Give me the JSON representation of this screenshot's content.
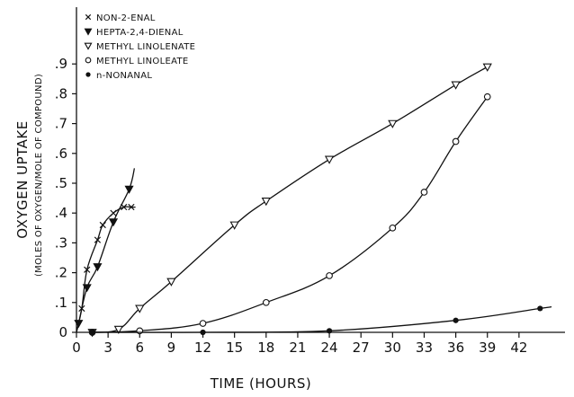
{
  "chart_data": {
    "type": "line",
    "title": "",
    "xlabel": "TIME (HOURS)",
    "ylabel": "OXYGEN UPTAKE",
    "ylabel_sub": "(MOLES OF OXYGEN/MOLE OF COMPOUND)",
    "xlim": [
      0,
      45
    ],
    "ylim": [
      0,
      1.0
    ],
    "x_ticks": [
      0,
      3,
      6,
      9,
      12,
      15,
      18,
      21,
      24,
      27,
      30,
      33,
      36,
      39,
      42
    ],
    "y_ticks": [
      {
        "value": 0,
        "label": "0"
      },
      {
        "value": 0.1,
        "label": ".1"
      },
      {
        "value": 0.2,
        "label": ".2"
      },
      {
        "value": 0.3,
        "label": ".3"
      },
      {
        "value": 0.4,
        "label": ".4"
      },
      {
        "value": 0.5,
        "label": ".5"
      },
      {
        "value": 0.6,
        "label": ".6"
      },
      {
        "value": 0.7,
        "label": ".7"
      },
      {
        "value": 0.8,
        "label": ".8"
      },
      {
        "value": 0.9,
        "label": ".9"
      }
    ],
    "grid": false,
    "legend_position": "top-left",
    "series": [
      {
        "name": "NON-2-ENAL",
        "marker": "x",
        "points": [
          [
            0.5,
            0.08
          ],
          [
            1.0,
            0.21
          ],
          [
            2.0,
            0.31
          ],
          [
            2.5,
            0.36
          ],
          [
            3.5,
            0.4
          ],
          [
            4.5,
            0.42
          ],
          [
            5.2,
            0.42
          ]
        ],
        "curve": [
          [
            0,
            0
          ],
          [
            0.5,
            0.08
          ],
          [
            1.0,
            0.21
          ],
          [
            2.0,
            0.31
          ],
          [
            2.5,
            0.36
          ],
          [
            3.5,
            0.4
          ],
          [
            4.5,
            0.42
          ],
          [
            5.2,
            0.42
          ],
          [
            5.6,
            0.42
          ]
        ]
      },
      {
        "name": "HEPTA-2,4-DIENAL",
        "marker": "filled-triangle",
        "points": [
          [
            0.2,
            0.03
          ],
          [
            1.0,
            0.15
          ],
          [
            2.0,
            0.22
          ],
          [
            3.5,
            0.37
          ],
          [
            5.0,
            0.48
          ]
        ],
        "curve": [
          [
            0,
            0
          ],
          [
            0.2,
            0.03
          ],
          [
            1.0,
            0.15
          ],
          [
            2.0,
            0.22
          ],
          [
            3.5,
            0.37
          ],
          [
            5.0,
            0.48
          ],
          [
            5.5,
            0.55
          ]
        ]
      },
      {
        "name": "METHYL LINOLENATE",
        "marker": "open-triangle",
        "points": [
          [
            1.5,
            0
          ],
          [
            4.0,
            0.01
          ],
          [
            6.0,
            0.08
          ],
          [
            9.0,
            0.17
          ],
          [
            15.0,
            0.36
          ],
          [
            18.0,
            0.44
          ],
          [
            24.0,
            0.58
          ],
          [
            30.0,
            0.7
          ],
          [
            36.0,
            0.83
          ],
          [
            39.0,
            0.89
          ]
        ],
        "curve": [
          [
            1.5,
            0
          ],
          [
            4.0,
            0.01
          ],
          [
            6.0,
            0.08
          ],
          [
            9.0,
            0.17
          ],
          [
            15.0,
            0.36
          ],
          [
            18.0,
            0.44
          ],
          [
            24.0,
            0.58
          ],
          [
            30.0,
            0.7
          ],
          [
            36.0,
            0.83
          ],
          [
            39.0,
            0.89
          ]
        ]
      },
      {
        "name": "METHYL LINOLEATE",
        "marker": "open-circle",
        "points": [
          [
            1.5,
            0
          ],
          [
            6.0,
            0.005
          ],
          [
            12.0,
            0.03
          ],
          [
            18.0,
            0.1
          ],
          [
            24.0,
            0.19
          ],
          [
            30.0,
            0.35
          ],
          [
            33.0,
            0.47
          ],
          [
            36.0,
            0.64
          ],
          [
            39.0,
            0.79
          ]
        ],
        "curve": [
          [
            1.5,
            0
          ],
          [
            6.0,
            0.005
          ],
          [
            12.0,
            0.03
          ],
          [
            18.0,
            0.1
          ],
          [
            24.0,
            0.19
          ],
          [
            30.0,
            0.35
          ],
          [
            33.0,
            0.47
          ],
          [
            36.0,
            0.64
          ],
          [
            39.0,
            0.79
          ]
        ]
      },
      {
        "name": "n-NONANAL",
        "marker": "filled-circle",
        "points": [
          [
            1.5,
            0
          ],
          [
            12.0,
            0
          ],
          [
            24.0,
            0.005
          ],
          [
            36.0,
            0.04
          ],
          [
            44.0,
            0.08
          ]
        ],
        "curve": [
          [
            1.5,
            0
          ],
          [
            12.0,
            0
          ],
          [
            24.0,
            0.005
          ],
          [
            36.0,
            0.04
          ],
          [
            44.0,
            0.08
          ],
          [
            45.0,
            0.085
          ]
        ]
      }
    ]
  }
}
